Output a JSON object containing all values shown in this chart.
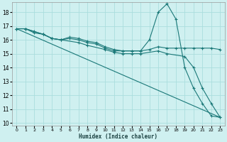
{
  "title": "",
  "xlabel": "Humidex (Indice chaleur)",
  "ylabel": "",
  "xlim": [
    -0.5,
    23.5
  ],
  "ylim": [
    9.8,
    18.7
  ],
  "yticks": [
    10,
    11,
    12,
    13,
    14,
    15,
    16,
    17,
    18
  ],
  "xticks": [
    0,
    1,
    2,
    3,
    4,
    5,
    6,
    7,
    8,
    9,
    10,
    11,
    12,
    13,
    14,
    15,
    16,
    17,
    18,
    19,
    20,
    21,
    22,
    23
  ],
  "bg_color": "#cff0f0",
  "grid_color": "#aadddd",
  "line_color": "#1a7878",
  "series": [
    {
      "x": [
        0,
        23
      ],
      "y": [
        16.8,
        10.4
      ],
      "marker": false
    },
    {
      "x": [
        0,
        1,
        2,
        3,
        4,
        5,
        6,
        7,
        8,
        9,
        10,
        11,
        12,
        13,
        14,
        15,
        16,
        17,
        18,
        19,
        20,
        21,
        22,
        23
      ],
      "y": [
        16.8,
        16.8,
        16.6,
        16.4,
        16.1,
        16.0,
        16.2,
        16.1,
        15.9,
        15.8,
        15.5,
        15.3,
        15.2,
        15.2,
        15.2,
        16.0,
        18.0,
        18.6,
        17.5,
        14.0,
        12.5,
        11.4,
        10.5,
        10.4
      ],
      "marker": true
    },
    {
      "x": [
        0,
        1,
        2,
        3,
        4,
        5,
        6,
        7,
        8,
        9,
        10,
        11,
        12,
        13,
        14,
        15,
        16,
        17,
        18,
        19,
        20,
        21,
        22,
        23
      ],
      "y": [
        16.8,
        16.8,
        16.5,
        16.4,
        16.1,
        16.0,
        16.1,
        16.0,
        15.8,
        15.7,
        15.4,
        15.2,
        15.2,
        15.2,
        15.2,
        15.3,
        15.5,
        15.4,
        15.4,
        15.4,
        15.4,
        15.4,
        15.4,
        15.3
      ],
      "marker": true
    },
    {
      "x": [
        0,
        1,
        3,
        4,
        5,
        7,
        8,
        10,
        11,
        12,
        13,
        14,
        16,
        17,
        19,
        20,
        21,
        22,
        23
      ],
      "y": [
        16.8,
        16.8,
        16.4,
        16.1,
        16.0,
        15.8,
        15.6,
        15.3,
        15.1,
        15.0,
        15.0,
        15.0,
        15.2,
        15.0,
        14.8,
        14.0,
        12.5,
        11.4,
        10.4
      ],
      "marker": true
    }
  ]
}
